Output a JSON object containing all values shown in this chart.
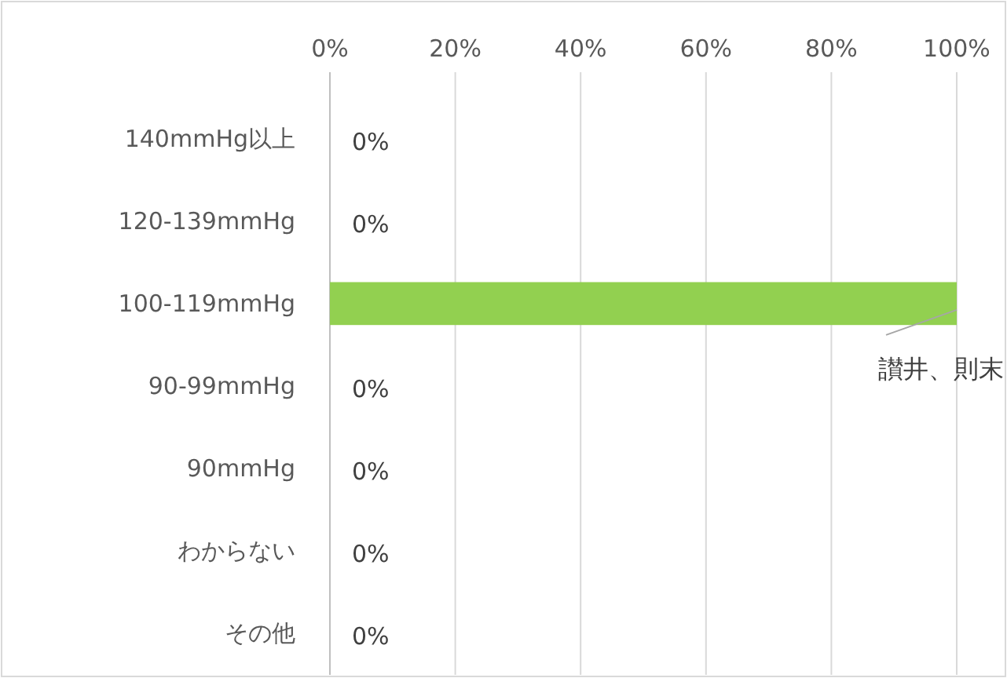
{
  "chart_data": {
    "type": "bar",
    "orientation": "horizontal",
    "categories": [
      "140mmHg以上",
      "120-139mmHg",
      "100-119mmHg",
      "90-99mmHg",
      "90mmHg",
      "わからない",
      "その他"
    ],
    "values": [
      0,
      0,
      100,
      0,
      0,
      0,
      0
    ],
    "value_labels": [
      "0%",
      "0%",
      "讃井、則末",
      "0%",
      "0%",
      "0%",
      "0%"
    ],
    "color": "#92d050",
    "xlim": [
      0,
      100
    ],
    "xticks": [
      {
        "value": 0,
        "label": "0%"
      },
      {
        "value": 20,
        "label": "20%"
      },
      {
        "value": 40,
        "label": "40%"
      },
      {
        "value": 60,
        "label": "60%"
      },
      {
        "value": 80,
        "label": "80%"
      },
      {
        "value": 100,
        "label": "100%"
      }
    ],
    "grid": "x"
  }
}
